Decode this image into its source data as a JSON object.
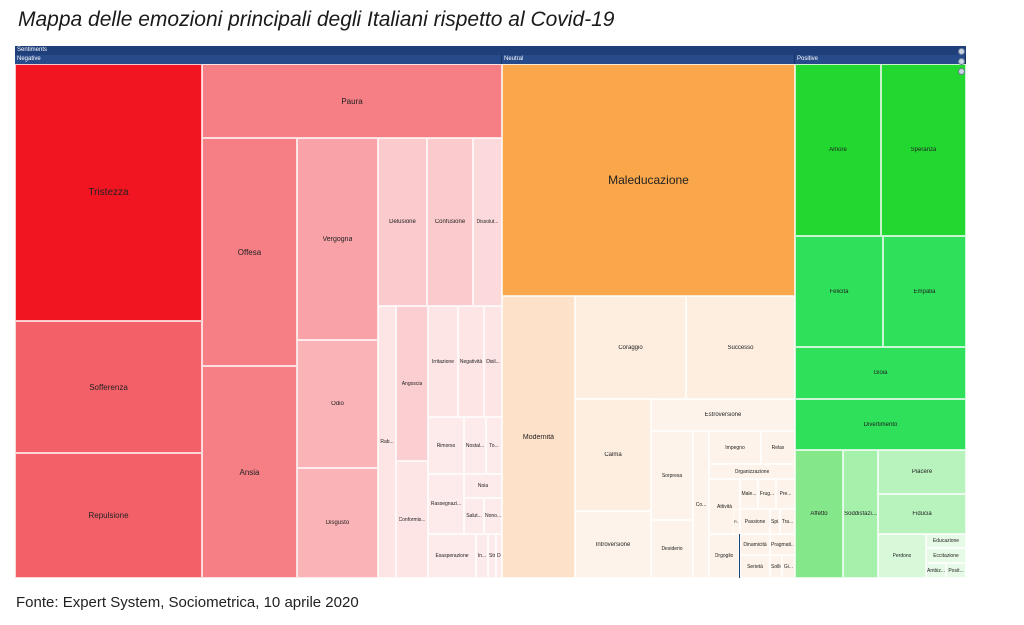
{
  "title": "Mappa delle emozioni principali degli Italiani rispetto al Covid-19",
  "source": "Fonte: Expert System, Sociometrica,  10 aprile 2020",
  "chart_data": {
    "type": "treemap",
    "title": "Mappa delle emozioni principali degli Italiani rispetto al Covid-19",
    "root_label": "Sentiments",
    "groups": [
      {
        "name": "Negative",
        "leaves": [
          {
            "label": "Tristezza",
            "color": "#f01520",
            "size": 11
          },
          {
            "label": "Sofferenza",
            "color": "#f46068",
            "size": 5
          },
          {
            "label": "Repulsione",
            "color": "#f46068",
            "size": 5
          },
          {
            "label": "Paura",
            "color": "#f57f85",
            "size": 6
          },
          {
            "label": "Offesa",
            "color": "#f57f85",
            "size": 5
          },
          {
            "label": "Ansia",
            "color": "#f57f85",
            "size": 5
          },
          {
            "label": "Vergogna",
            "color": "#f9a3a8",
            "size": 3
          },
          {
            "label": "Odio",
            "color": "#fab3b6",
            "size": 2
          },
          {
            "label": "Disgusto",
            "color": "#fab3b6",
            "size": 2
          },
          {
            "label": "Delusione",
            "color": "#fbcacc",
            "size": 1
          },
          {
            "label": "Confusione",
            "color": "#fbcacc",
            "size": 1
          },
          {
            "label": "Dissolut...",
            "color": "#fcdadc",
            "size": 1
          },
          {
            "label": "Rab...",
            "color": "#fde4e5",
            "size": 1
          },
          {
            "label": "Angoscia",
            "color": "#fbcfd1",
            "size": 1
          },
          {
            "label": "Conformis...",
            "color": "#fde4e5",
            "size": 1
          },
          {
            "label": "Irritazione",
            "color": "#fde4e5",
            "size": 1
          },
          {
            "label": "Negatività",
            "color": "#fde4e5",
            "size": 1
          },
          {
            "label": "Disil...",
            "color": "#fde4e5",
            "size": 1
          },
          {
            "label": "Rimorso",
            "color": "#fdeaeb",
            "size": 1
          },
          {
            "label": "Nostal...",
            "color": "#fdeaeb",
            "size": 1
          },
          {
            "label": "To...",
            "color": "#fdeaeb",
            "size": 1
          },
          {
            "label": "Noia",
            "color": "#fdeaeb",
            "size": 1
          },
          {
            "label": "Rassegnazi...",
            "color": "#fdeaeb",
            "size": 1
          },
          {
            "label": "Salut...",
            "color": "#fdeaeb",
            "size": 1
          },
          {
            "label": "Nono...",
            "color": "#fdeaeb",
            "size": 1
          },
          {
            "label": "Esasperazione",
            "color": "#fdeaeb",
            "size": 1
          },
          {
            "label": "In...",
            "color": "#fdeaeb",
            "size": 1
          },
          {
            "label": "Str...",
            "color": "#fdeaeb",
            "size": 1
          },
          {
            "label": "Diffi...",
            "color": "#fdeaeb",
            "size": 1
          }
        ]
      },
      {
        "name": "Neutral",
        "leaves": [
          {
            "label": "Maleducazione",
            "color": "#f9a74a",
            "size": 12
          },
          {
            "label": "Modernità",
            "color": "#fde1c8",
            "size": 5
          },
          {
            "label": "Coraggio",
            "color": "#fdeee0",
            "size": 3
          },
          {
            "label": "Successo",
            "color": "#fdeee0",
            "size": 3
          },
          {
            "label": "Calma",
            "color": "#fdeee0",
            "size": 2
          },
          {
            "label": "Introversione",
            "color": "#fdf3ea",
            "size": 2
          },
          {
            "label": "Estroversione",
            "color": "#fdf3ea",
            "size": 1
          },
          {
            "label": "Sorpresa",
            "color": "#fdf3ea",
            "size": 1
          },
          {
            "label": "Desiderio",
            "color": "#fdf3ea",
            "size": 1
          },
          {
            "label": "Co...",
            "color": "#fdf3ea",
            "size": 1
          },
          {
            "label": "Impegno",
            "color": "#fdf3ea",
            "size": 1
          },
          {
            "label": "Relax",
            "color": "#fdf3ea",
            "size": 1
          },
          {
            "label": "Organizzazione",
            "color": "#fdf3ea",
            "size": 1
          },
          {
            "label": "Attività",
            "color": "#fdf3ea",
            "size": 1
          },
          {
            "label": "Male...",
            "color": "#fdf3ea",
            "size": 1
          },
          {
            "label": "Frug...",
            "color": "#fdf3ea",
            "size": 1
          },
          {
            "label": "Pre...",
            "color": "#fdf3ea",
            "size": 1
          },
          {
            "label": "P...",
            "color": "#fdf3ea",
            "size": 1
          },
          {
            "label": "Passione",
            "color": "#fdf3ea",
            "size": 1
          },
          {
            "label": "Spi...",
            "color": "#fdf3ea",
            "size": 1
          },
          {
            "label": "Tra...",
            "color": "#fdf3ea",
            "size": 1
          },
          {
            "label": "Orgoglio",
            "color": "#fdf3ea",
            "size": 1
          },
          {
            "label": "Dinamicità",
            "color": "#fdf3ea",
            "size": 1
          },
          {
            "label": "Pragmati...",
            "color": "#fdf3ea",
            "size": 1
          },
          {
            "label": "Serietà",
            "color": "#fdf3ea",
            "size": 1
          },
          {
            "label": "Sollievo",
            "color": "#fdf3ea",
            "size": 1
          },
          {
            "label": "Gi...",
            "color": "#fdf3ea",
            "size": 1
          },
          {
            "label": "Co...",
            "color": "#fdf3ea",
            "size": 1
          }
        ]
      },
      {
        "name": "Positive",
        "leaves": [
          {
            "label": "Amore",
            "color": "#22d830",
            "size": 5
          },
          {
            "label": "Speranza",
            "color": "#22d830",
            "size": 5
          },
          {
            "label": "Felicità",
            "color": "#2fe05a",
            "size": 3
          },
          {
            "label": "Empatia",
            "color": "#2fe05a",
            "size": 3
          },
          {
            "label": "Gioia",
            "color": "#2fe05a",
            "size": 2
          },
          {
            "label": "Divertimento",
            "color": "#2fe05a",
            "size": 2
          },
          {
            "label": "Affetto",
            "color": "#84e88a",
            "size": 2
          },
          {
            "label": "Soddisfazi...",
            "color": "#a5f0aa",
            "size": 2
          },
          {
            "label": "Piacere",
            "color": "#b8f2bc",
            "size": 1
          },
          {
            "label": "Fiducia",
            "color": "#b8f2bc",
            "size": 1
          },
          {
            "label": "Perdono",
            "color": "#d8f8da",
            "size": 1
          },
          {
            "label": "Educazione",
            "color": "#e6fae7",
            "size": 1
          },
          {
            "label": "Eccitazione",
            "color": "#e6fae7",
            "size": 1
          },
          {
            "label": "Ambiz...",
            "color": "#e6fae7",
            "size": 1
          },
          {
            "label": "Posit...",
            "color": "#e6fae7",
            "size": 1
          }
        ]
      }
    ]
  }
}
